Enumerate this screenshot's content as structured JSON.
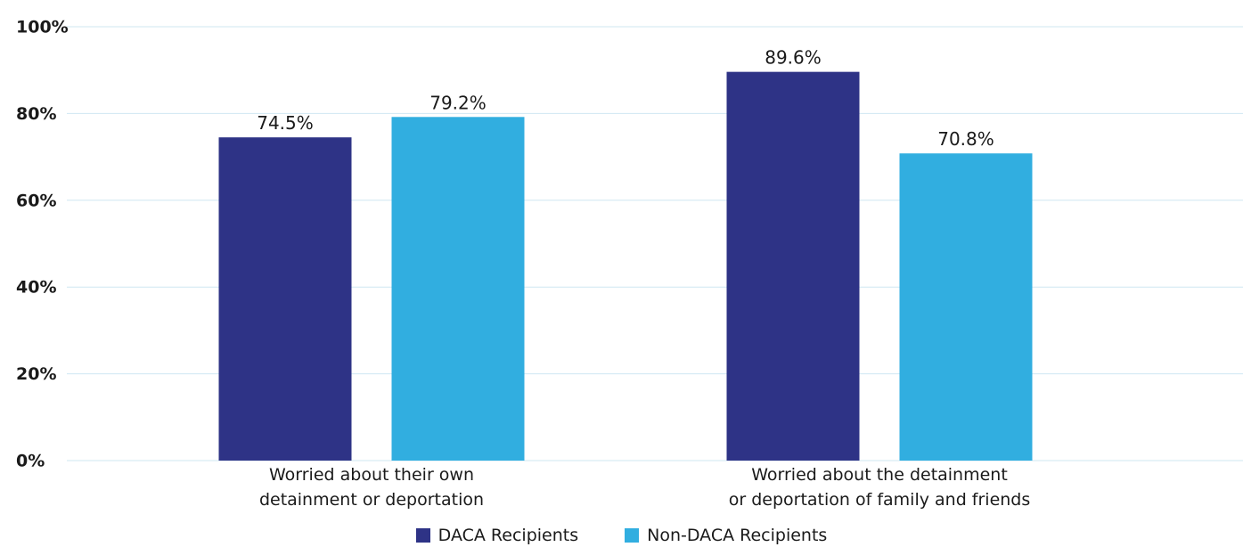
{
  "chart_data": {
    "type": "bar",
    "categories": [
      [
        "Worried about their own",
        "detainment or deportation"
      ],
      [
        "Worried about the detainment",
        "or deportation of family and friends"
      ]
    ],
    "series": [
      {
        "name": "DACA Recipients",
        "color": "#2e3386",
        "values": [
          74.5,
          89.6
        ],
        "labels": [
          "74.5%",
          "89.6%"
        ]
      },
      {
        "name": "Non-DACA Recipients",
        "color": "#31aee0",
        "values": [
          79.2,
          70.8
        ],
        "labels": [
          "79.2%",
          "70.8%"
        ]
      }
    ],
    "yticks": [
      "0%",
      "20%",
      "40%",
      "60%",
      "80%",
      "100%"
    ],
    "ytick_values": [
      0,
      20,
      40,
      60,
      80,
      100
    ],
    "ylim": [
      0,
      100
    ],
    "grid": true,
    "gridline_color": "#cfe7f2",
    "legend_position": "bottom-center"
  }
}
